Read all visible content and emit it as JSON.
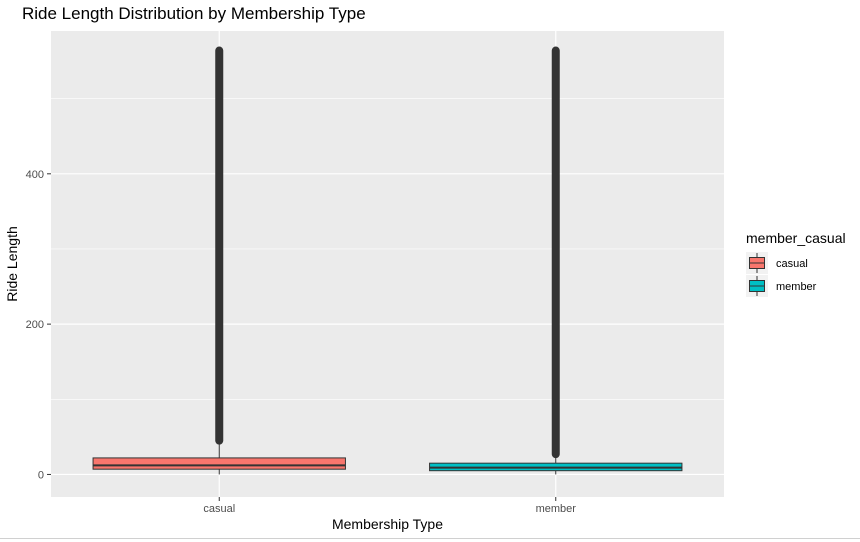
{
  "chart_data": {
    "type": "box",
    "title": "Ride Length Distribution by Membership Type",
    "xlabel": "Membership Type",
    "ylabel": "Ride Length",
    "categories": [
      "casual",
      "member"
    ],
    "ylim": [
      -30,
      590
    ],
    "yticks": [
      0,
      200,
      400
    ],
    "legend": {
      "title": "member_casual",
      "placement": "right",
      "entries": [
        "casual",
        "member"
      ]
    },
    "series": [
      {
        "category": "casual",
        "color": "#F8766D",
        "min": 0,
        "q1": 7,
        "median": 12,
        "q3": 22,
        "whisker_low": 0,
        "whisker_high": 45,
        "outlier_range": [
          45,
          564
        ]
      },
      {
        "category": "member",
        "color": "#00BFC4",
        "min": 0,
        "q1": 5,
        "median": 9,
        "q3": 15,
        "whisker_low": 0,
        "whisker_high": 27,
        "outlier_range": [
          27,
          564
        ]
      }
    ],
    "grid": true,
    "panel_background": "#EBEBEB"
  }
}
